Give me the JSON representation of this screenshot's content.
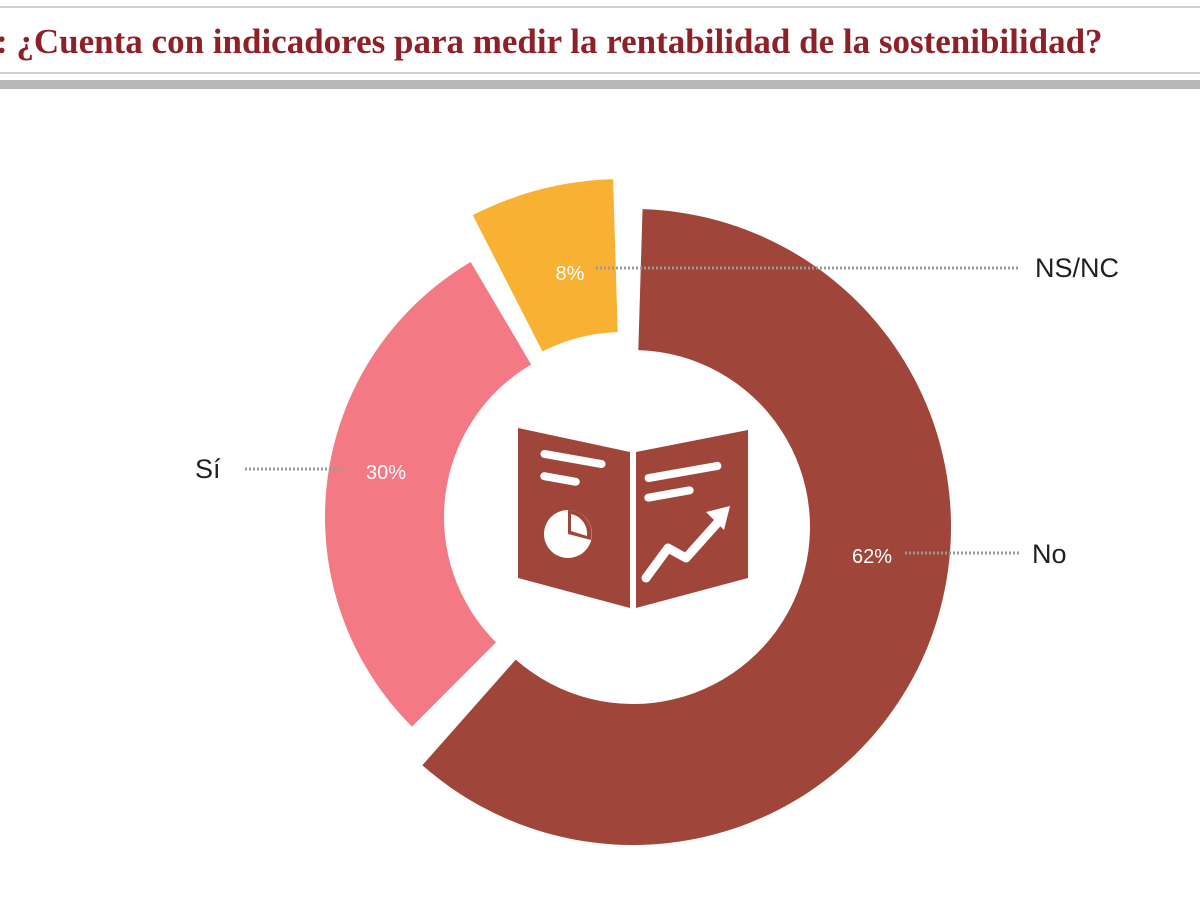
{
  "title": "¿Cuenta con indicadores para medir la rentabilidad de la sostenibilidad?",
  "title_prefix": ":",
  "colors": {
    "title": "#8e2128",
    "No": "#a04539",
    "Sí": "#f37985",
    "NS/NC": "#f9b133",
    "leader": "#9a9a9a"
  },
  "center_icon": "report-chart-icon",
  "chart_data": {
    "type": "pie",
    "style": "donut",
    "categories": [
      "No",
      "Sí",
      "NS/NC"
    ],
    "values": [
      62,
      30,
      8
    ],
    "labels": [
      "62%",
      "30%",
      "8%"
    ],
    "legend": "leader-line labels"
  }
}
